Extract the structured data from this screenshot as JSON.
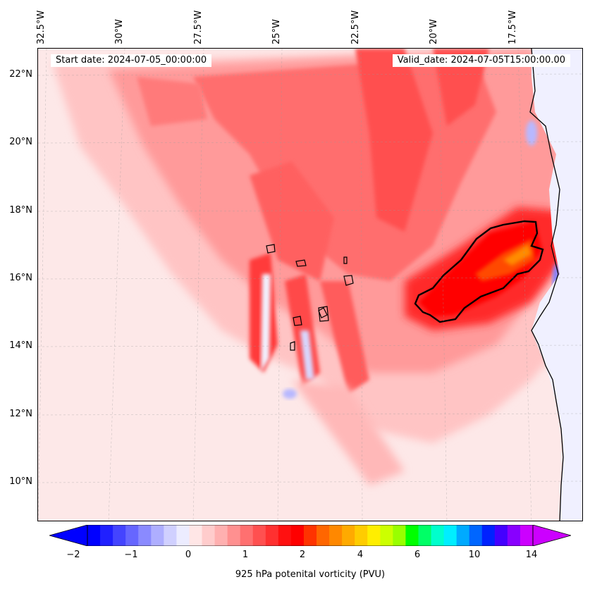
{
  "header": {
    "start_date": "Start date: 2024-07-05_00:00:00",
    "valid_date": "Valid_date: 2024-07-05T15:00:00.00"
  },
  "map": {
    "longitude_labels": [
      "32.5°W",
      "30°W",
      "27.5°W",
      "25°W",
      "22.5°W",
      "20°W",
      "17.5°W"
    ],
    "latitude_labels": [
      "22°N",
      "20°N",
      "18°N",
      "16°N",
      "14°N",
      "12°N",
      "10°N"
    ],
    "gridlines": true,
    "coastline_color": "#000000",
    "contour_line_color": "#000000"
  },
  "colorbar": {
    "orientation": "horizontal",
    "extend": "both",
    "tick_labels": [
      "-2",
      "-1",
      "0",
      "1",
      "2",
      "4",
      "6",
      "10",
      "14"
    ],
    "label": "925 hPa potenital vorticity (PVU)",
    "colors": [
      "#0000ff",
      "#2020ff",
      "#4444ff",
      "#6666ff",
      "#8a8aff",
      "#aeaeff",
      "#d0d0ff",
      "#ececff",
      "#ffe6e6",
      "#ffcccc",
      "#ffb0b0",
      "#ff9090",
      "#ff7070",
      "#ff5050",
      "#ff3030",
      "#ff1010",
      "#ff0000",
      "#ff3300",
      "#ff6600",
      "#ff8800",
      "#ffaa00",
      "#ffcc00",
      "#ffee00",
      "#ccff00",
      "#99ff00",
      "#00ff00",
      "#00ff66",
      "#00ffcc",
      "#00eeff",
      "#00aaff",
      "#0066ff",
      "#0022ff",
      "#4400ff",
      "#8800ff",
      "#cc00ff"
    ],
    "under_color": "#0000ff",
    "over_color": "#cc00ff"
  }
}
